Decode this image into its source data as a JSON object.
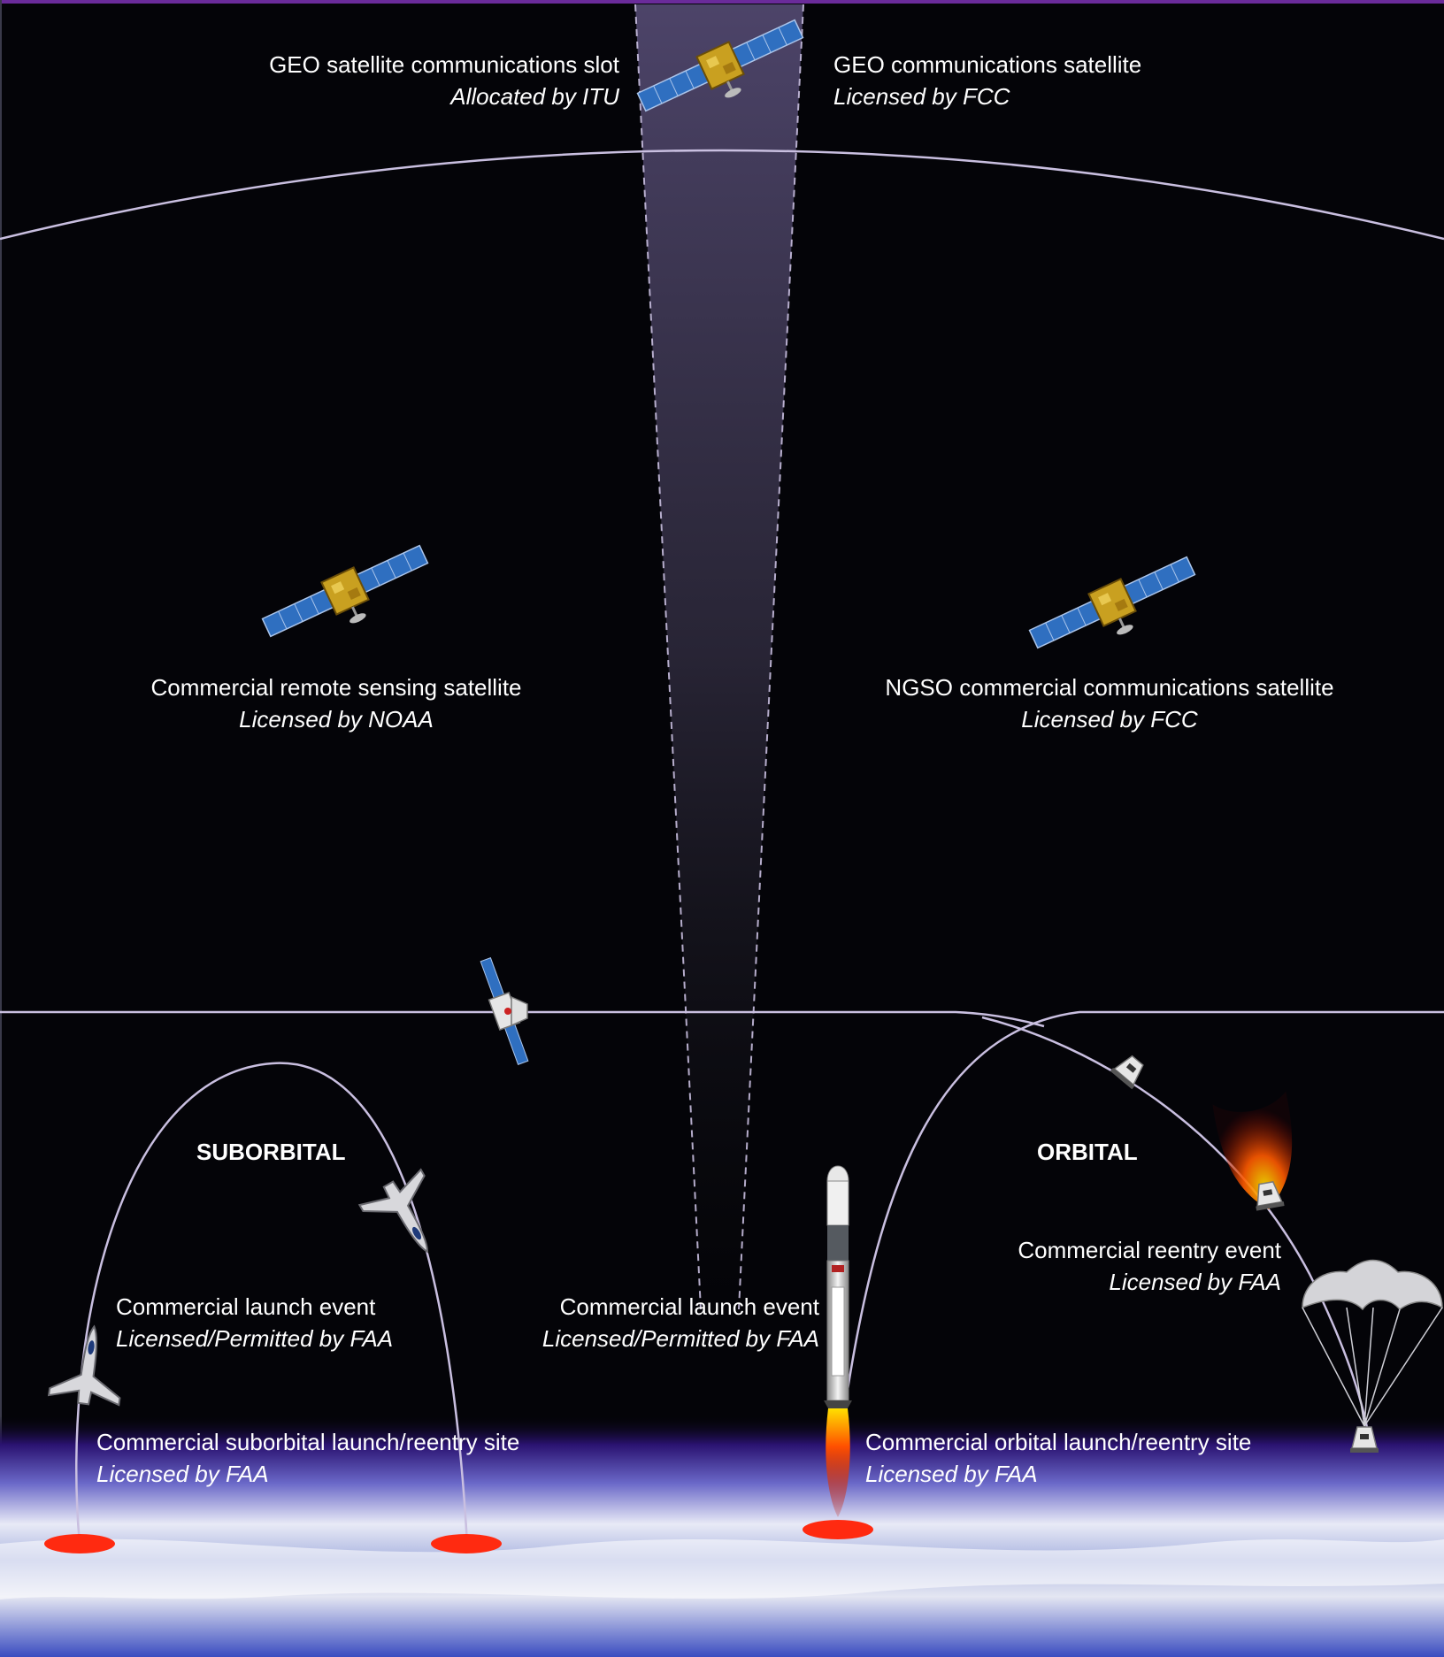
{
  "labels": {
    "geo_slot": {
      "title": "GEO satellite communications slot",
      "sub": "Allocated by ITU"
    },
    "geo_sat": {
      "title": "GEO communications satellite",
      "sub": "Licensed by FCC"
    },
    "remote_sensing": {
      "title": "Commercial remote sensing satellite",
      "sub": "Licensed by NOAA"
    },
    "ngso": {
      "title": "NGSO commercial communications satellite",
      "sub": "Licensed by FCC"
    },
    "suborbital_heading": "SUBORBITAL",
    "orbital_heading": "ORBITAL",
    "suborbital_launch": {
      "title": "Commercial launch event",
      "sub": "Licensed/Permitted by FAA"
    },
    "orbital_launch": {
      "title": "Commercial launch event",
      "sub": "Licensed/Permitted by FAA"
    },
    "reentry": {
      "title": "Commercial reentry event",
      "sub": "Licensed by FAA"
    },
    "suborbital_site": {
      "title": "Commercial suborbital launch/reentry site",
      "sub": "Licensed by FAA"
    },
    "orbital_site": {
      "title": "Commercial orbital launch/reentry site",
      "sub": "Licensed by FAA"
    }
  },
  "colors": {
    "background": "#040408",
    "orbit_line": "#c9bfe0",
    "site_marker": "#ff2a10",
    "solar_panel": "#2f6fc0",
    "satellite_body": "#c9a020",
    "top_border": "#6a2b9a"
  },
  "icons": [
    "satellite-icon",
    "dragon-capsule-icon",
    "spaceplane-icon",
    "rocket-icon",
    "parachute-icon",
    "reentry-flame-icon",
    "launch-site-marker"
  ]
}
